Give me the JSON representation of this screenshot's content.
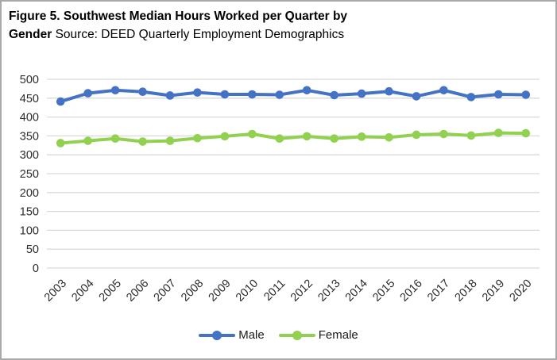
{
  "figure": {
    "title_line1_bold": "Figure 5. Southwest Median Hours Worked per Quarter by",
    "title_line2_bold": "Gender",
    "title_line2_regular": " Source: DEED Quarterly Employment Demographics"
  },
  "chart_data": {
    "type": "line",
    "title": "Figure 5. Southwest Median Hours Worked per Quarter by Gender",
    "source": "DEED Quarterly Employment Demographics",
    "categories": [
      "2003",
      "2004",
      "2005",
      "2006",
      "2007",
      "2008",
      "2009",
      "2010",
      "2011",
      "2012",
      "2013",
      "2014",
      "2015",
      "2016",
      "2017",
      "2018",
      "2019",
      "2020"
    ],
    "series": [
      {
        "name": "Male",
        "color": "#4472c4",
        "values": [
          441,
          463,
          471,
          467,
          457,
          465,
          460,
          460,
          459,
          471,
          458,
          462,
          468,
          455,
          471,
          453,
          460,
          459
        ]
      },
      {
        "name": "Female",
        "color": "#92d050",
        "values": [
          331,
          337,
          343,
          335,
          337,
          344,
          349,
          355,
          343,
          349,
          343,
          348,
          346,
          353,
          355,
          351,
          358,
          357
        ]
      }
    ],
    "xlabel": "",
    "ylabel": "",
    "ylim": [
      0,
      500
    ],
    "yticks": [
      0,
      50,
      100,
      150,
      200,
      250,
      300,
      350,
      400,
      450,
      500
    ],
    "grid": true,
    "gridline_color": "#d9d9d9",
    "tick_label_color": "#2b2b2b",
    "legend_position": "bottom"
  }
}
